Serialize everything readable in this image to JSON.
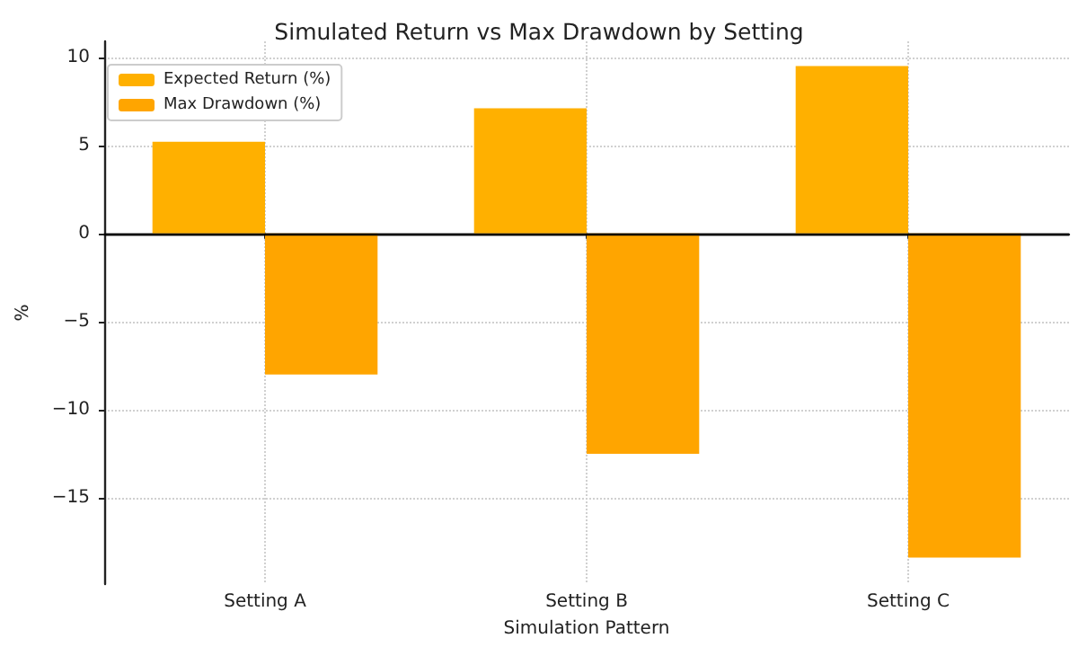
{
  "chart_data": {
    "type": "bar",
    "title": "Simulated Return vs Max Drawdown by Setting",
    "xlabel": "Simulation Pattern",
    "ylabel": "%",
    "categories": [
      "Setting A",
      "Setting B",
      "Setting C"
    ],
    "series": [
      {
        "name": "Expected Return (%)",
        "color": "#ffb000",
        "values": [
          5.2,
          7.1,
          9.5
        ]
      },
      {
        "name": "Max Drawdown (%)",
        "color": "#ffa500",
        "values": [
          -8.0,
          -12.5,
          -18.4
        ]
      }
    ],
    "ylim": [
      -19.9,
      10.9
    ],
    "yticks": [
      -15,
      -10,
      -5,
      0,
      5,
      10
    ],
    "grid": true,
    "legend": "top left",
    "ref_lines": [
      {
        "axis": "y",
        "value": 0,
        "color": "#000000"
      }
    ]
  }
}
